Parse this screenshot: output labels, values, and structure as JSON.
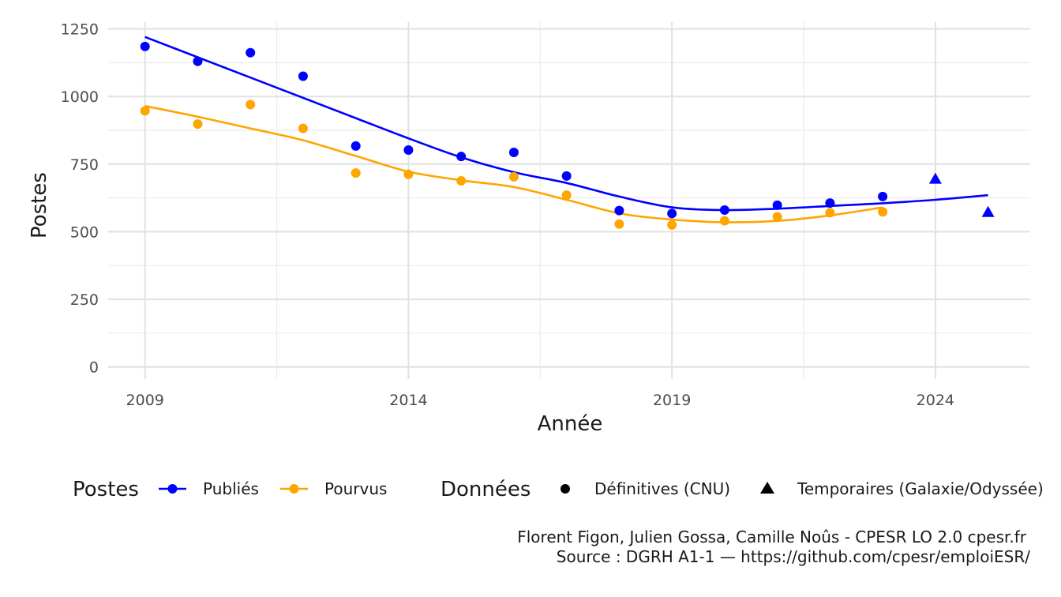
{
  "chart_data": {
    "type": "scatter",
    "xlabel": "Année",
    "ylabel": "Postes",
    "xlim": [
      2008.3,
      2025.8
    ],
    "ylim": [
      -45,
      1275
    ],
    "x_ticks": [
      2009,
      2014,
      2019,
      2024
    ],
    "y_ticks": [
      0,
      250,
      500,
      750,
      1000,
      1250
    ],
    "grid": true,
    "series": [
      {
        "name": "Publiés",
        "color": "#0000ff",
        "points": [
          {
            "x": 2009,
            "y": 1185,
            "shape": "circle"
          },
          {
            "x": 2010,
            "y": 1130,
            "shape": "circle"
          },
          {
            "x": 2011,
            "y": 1162,
            "shape": "circle"
          },
          {
            "x": 2012,
            "y": 1075,
            "shape": "circle"
          },
          {
            "x": 2013,
            "y": 817,
            "shape": "circle"
          },
          {
            "x": 2014,
            "y": 802,
            "shape": "circle"
          },
          {
            "x": 2015,
            "y": 778,
            "shape": "circle"
          },
          {
            "x": 2016,
            "y": 793,
            "shape": "circle"
          },
          {
            "x": 2017,
            "y": 706,
            "shape": "circle"
          },
          {
            "x": 2018,
            "y": 578,
            "shape": "circle"
          },
          {
            "x": 2019,
            "y": 567,
            "shape": "circle"
          },
          {
            "x": 2020,
            "y": 580,
            "shape": "circle"
          },
          {
            "x": 2021,
            "y": 598,
            "shape": "circle"
          },
          {
            "x": 2022,
            "y": 606,
            "shape": "circle"
          },
          {
            "x": 2023,
            "y": 630,
            "shape": "circle"
          },
          {
            "x": 2024,
            "y": 695,
            "shape": "triangle"
          },
          {
            "x": 2025,
            "y": 572,
            "shape": "triangle"
          }
        ],
        "trend": [
          {
            "x": 2009,
            "y": 1220
          },
          {
            "x": 2010,
            "y": 1145
          },
          {
            "x": 2011,
            "y": 1070
          },
          {
            "x": 2012,
            "y": 995
          },
          {
            "x": 2013,
            "y": 920
          },
          {
            "x": 2014,
            "y": 845
          },
          {
            "x": 2015,
            "y": 775
          },
          {
            "x": 2016,
            "y": 720
          },
          {
            "x": 2017,
            "y": 680
          },
          {
            "x": 2018,
            "y": 630
          },
          {
            "x": 2019,
            "y": 590
          },
          {
            "x": 2020,
            "y": 580
          },
          {
            "x": 2021,
            "y": 585
          },
          {
            "x": 2022,
            "y": 595
          },
          {
            "x": 2023,
            "y": 605
          },
          {
            "x": 2024,
            "y": 618
          },
          {
            "x": 2025,
            "y": 635
          }
        ]
      },
      {
        "name": "Pourvus",
        "color": "#ffa500",
        "points": [
          {
            "x": 2009,
            "y": 947,
            "shape": "circle"
          },
          {
            "x": 2010,
            "y": 898,
            "shape": "circle"
          },
          {
            "x": 2011,
            "y": 970,
            "shape": "circle"
          },
          {
            "x": 2012,
            "y": 882,
            "shape": "circle"
          },
          {
            "x": 2013,
            "y": 717,
            "shape": "circle"
          },
          {
            "x": 2014,
            "y": 712,
            "shape": "circle"
          },
          {
            "x": 2015,
            "y": 688,
            "shape": "circle"
          },
          {
            "x": 2016,
            "y": 703,
            "shape": "circle"
          },
          {
            "x": 2017,
            "y": 635,
            "shape": "circle"
          },
          {
            "x": 2018,
            "y": 528,
            "shape": "circle"
          },
          {
            "x": 2019,
            "y": 525,
            "shape": "circle"
          },
          {
            "x": 2020,
            "y": 540,
            "shape": "circle"
          },
          {
            "x": 2021,
            "y": 555,
            "shape": "circle"
          },
          {
            "x": 2022,
            "y": 570,
            "shape": "circle"
          },
          {
            "x": 2023,
            "y": 573,
            "shape": "circle"
          }
        ],
        "trend": [
          {
            "x": 2009,
            "y": 965
          },
          {
            "x": 2010,
            "y": 925
          },
          {
            "x": 2011,
            "y": 882
          },
          {
            "x": 2012,
            "y": 838
          },
          {
            "x": 2013,
            "y": 780
          },
          {
            "x": 2014,
            "y": 722
          },
          {
            "x": 2015,
            "y": 690
          },
          {
            "x": 2016,
            "y": 665
          },
          {
            "x": 2017,
            "y": 618
          },
          {
            "x": 2018,
            "y": 568
          },
          {
            "x": 2019,
            "y": 545
          },
          {
            "x": 2020,
            "y": 535
          },
          {
            "x": 2021,
            "y": 540
          },
          {
            "x": 2022,
            "y": 560
          },
          {
            "x": 2023,
            "y": 590
          }
        ]
      }
    ],
    "legend": {
      "position": "bottom",
      "groups": [
        {
          "title": "Postes",
          "items": [
            {
              "label": "Publiés",
              "color": "#0000ff",
              "key": "line-point"
            },
            {
              "label": "Pourvus",
              "color": "#ffa500",
              "key": "line-point"
            }
          ]
        },
        {
          "title": "Données",
          "items": [
            {
              "label": "Définitives (CNU)",
              "color": "#000000",
              "key": "circle"
            },
            {
              "label": "Temporaires (Galaxie/Odyssée)",
              "color": "#000000",
              "key": "triangle"
            }
          ]
        }
      ]
    },
    "caption": [
      "Florent Figon, Julien Gossa, Camille Noûs - CPESR LO 2.0 cpesr.fr",
      "Source : DGRH A1-1 — https://github.com/cpesr/emploiESR/"
    ]
  }
}
